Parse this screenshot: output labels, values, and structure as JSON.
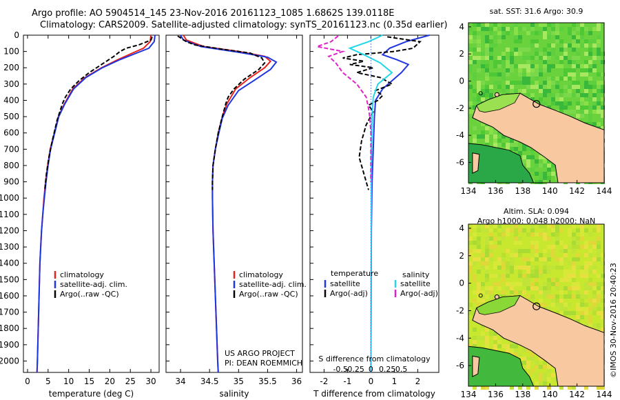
{
  "header": {
    "line1": "Argo profile: AO 5904514_145 23-Nov-2016 20161123_1085 1.6862S 139.0118E",
    "line2": "Climatology: CARS2009. Satellite-adjusted climatology: synTS_20161123.nc (0.35d earlier)"
  },
  "credits": {
    "project": "US ARGO PROJECT",
    "pi": "PI: DEAN ROEMMICH"
  },
  "footer": {
    "timestamp": "©IMOS 30-Nov-2016 20:40:23"
  },
  "colors": {
    "climatology": "#e8201c",
    "satellite": "#1f35e0",
    "argo": "#000000",
    "sal_satellite": "#22d8e8",
    "sal_argo": "#e020c8"
  },
  "chart_data": [
    {
      "type": "line",
      "id": "temperature",
      "xlabel": "temperature (deg C)",
      "ylabel": "",
      "xlim": [
        -1,
        32
      ],
      "ylim": [
        2070,
        0
      ],
      "y_axis": "depth (reversed)",
      "xticks": [
        0,
        5,
        10,
        15,
        20,
        25,
        30
      ],
      "yticks": [
        0,
        100,
        200,
        300,
        400,
        500,
        600,
        700,
        800,
        900,
        1000,
        1100,
        1200,
        1300,
        1400,
        1500,
        1600,
        1700,
        1800,
        1900,
        2000
      ],
      "legend": [
        "climatology",
        "satellite-adj. clim.",
        "Argo(..raw -QC)"
      ],
      "series": [
        {
          "name": "climatology",
          "style": "solid",
          "color_key": "climatology",
          "points": [
            [
              30,
              0
            ],
            [
              29.8,
              40
            ],
            [
              28.2,
              80
            ],
            [
              25.5,
              110
            ],
            [
              22,
              150
            ],
            [
              18,
              200
            ],
            [
              14,
              260
            ],
            [
              11,
              330
            ],
            [
              9,
              420
            ],
            [
              7.5,
              500
            ],
            [
              6.5,
              600
            ],
            [
              5.5,
              700
            ],
            [
              4.9,
              800
            ],
            [
              4.4,
              900
            ],
            [
              4,
              1000
            ],
            [
              3.7,
              1100
            ],
            [
              3.4,
              1200
            ],
            [
              3.2,
              1300
            ],
            [
              3,
              1400
            ],
            [
              2.9,
              1500
            ],
            [
              2.8,
              1600
            ],
            [
              2.7,
              1700
            ],
            [
              2.6,
              1800
            ],
            [
              2.5,
              1900
            ],
            [
              2.4,
              2000
            ],
            [
              2.3,
              2070
            ]
          ]
        },
        {
          "name": "satellite-adj. clim.",
          "style": "solid",
          "color_key": "satellite",
          "points": [
            [
              31,
              0
            ],
            [
              30.8,
              40
            ],
            [
              29.5,
              80
            ],
            [
              26.5,
              110
            ],
            [
              22.5,
              150
            ],
            [
              18.2,
              200
            ],
            [
              14.2,
              260
            ],
            [
              11.2,
              330
            ],
            [
              9.1,
              420
            ],
            [
              7.6,
              500
            ],
            [
              6.6,
              600
            ],
            [
              5.6,
              700
            ],
            [
              5,
              800
            ],
            [
              4.5,
              900
            ],
            [
              4.1,
              1000
            ],
            [
              3.7,
              1100
            ],
            [
              3.4,
              1200
            ],
            [
              3.2,
              1300
            ],
            [
              3,
              1400
            ],
            [
              2.9,
              1500
            ],
            [
              2.8,
              1600
            ],
            [
              2.7,
              1700
            ],
            [
              2.6,
              1800
            ],
            [
              2.5,
              1900
            ],
            [
              2.4,
              2000
            ],
            [
              2.3,
              2070
            ]
          ]
        },
        {
          "name": "Argo(..raw -QC)",
          "style": "dashed",
          "color_key": "argo",
          "points": [
            [
              30.3,
              10
            ],
            [
              30,
              30
            ],
            [
              27,
              60
            ],
            [
              24,
              80
            ],
            [
              22.5,
              100
            ],
            [
              21,
              130
            ],
            [
              18,
              180
            ],
            [
              15,
              230
            ],
            [
              12.5,
              280
            ],
            [
              10.5,
              330
            ],
            [
              9.2,
              380
            ],
            [
              8.5,
              420
            ],
            [
              7.2,
              520
            ],
            [
              6,
              650
            ],
            [
              5.2,
              750
            ],
            [
              4.6,
              850
            ],
            [
              4.2,
              950
            ]
          ]
        }
      ]
    },
    {
      "type": "line",
      "id": "salinity",
      "xlabel": "salinity",
      "ylabel": "",
      "xlim": [
        33.75,
        36.1
      ],
      "ylim": [
        2070,
        0
      ],
      "y_axis": "depth (reversed)",
      "xticks": [
        34,
        34.5,
        35,
        35.5,
        36
      ],
      "legend": [
        "climatology",
        "satellite-adj. clim.",
        "Argo(..raw -QC)"
      ],
      "series": [
        {
          "name": "climatology",
          "style": "solid",
          "color_key": "climatology",
          "points": [
            [
              34.05,
              0
            ],
            [
              34.1,
              30
            ],
            [
              34.4,
              70
            ],
            [
              35.0,
              100
            ],
            [
              35.45,
              130
            ],
            [
              35.55,
              160
            ],
            [
              35.45,
              200
            ],
            [
              35.2,
              260
            ],
            [
              34.95,
              330
            ],
            [
              34.8,
              420
            ],
            [
              34.72,
              500
            ],
            [
              34.65,
              600
            ],
            [
              34.6,
              700
            ],
            [
              34.56,
              800
            ],
            [
              34.55,
              900
            ],
            [
              34.55,
              1000
            ],
            [
              34.56,
              1200
            ],
            [
              34.58,
              1400
            ],
            [
              34.6,
              1600
            ],
            [
              34.62,
              1800
            ],
            [
              34.64,
              2000
            ],
            [
              34.65,
              2070
            ]
          ]
        },
        {
          "name": "satellite-adj. clim.",
          "style": "solid",
          "color_key": "satellite",
          "points": [
            [
              34.0,
              0
            ],
            [
              34.05,
              30
            ],
            [
              34.35,
              70
            ],
            [
              35.0,
              105
            ],
            [
              35.5,
              135
            ],
            [
              35.65,
              165
            ],
            [
              35.55,
              210
            ],
            [
              35.3,
              270
            ],
            [
              35.0,
              340
            ],
            [
              34.82,
              430
            ],
            [
              34.72,
              510
            ],
            [
              34.66,
              600
            ],
            [
              34.6,
              700
            ],
            [
              34.56,
              800
            ],
            [
              34.55,
              900
            ],
            [
              34.55,
              1000
            ],
            [
              34.56,
              1200
            ],
            [
              34.58,
              1400
            ],
            [
              34.6,
              1600
            ],
            [
              34.62,
              1800
            ],
            [
              34.64,
              2000
            ],
            [
              34.65,
              2070
            ]
          ]
        },
        {
          "name": "Argo(..raw -QC)",
          "style": "dashed",
          "color_key": "argo",
          "points": [
            [
              33.95,
              5
            ],
            [
              34.1,
              40
            ],
            [
              34.25,
              60
            ],
            [
              34.7,
              85
            ],
            [
              35.2,
              110
            ],
            [
              35.4,
              140
            ],
            [
              35.45,
              170
            ],
            [
              35.35,
              210
            ],
            [
              35.1,
              270
            ],
            [
              34.92,
              330
            ],
            [
              34.82,
              380
            ],
            [
              34.78,
              420
            ],
            [
              34.72,
              500
            ],
            [
              34.65,
              600
            ],
            [
              34.6,
              700
            ],
            [
              34.56,
              800
            ],
            [
              34.55,
              900
            ],
            [
              34.55,
              950
            ]
          ]
        }
      ]
    },
    {
      "type": "line",
      "id": "difference",
      "xlabel": "T difference from climatology",
      "xlabel_top": "S difference from climatology",
      "xlim": [
        -2.6,
        2.9
      ],
      "ylim": [
        2070,
        0
      ],
      "y_axis": "depth (reversed)",
      "xticks": [
        -2,
        -1,
        0,
        1,
        2
      ],
      "xticks_salinity": [
        "-0.5",
        "-0.25",
        "0",
        "0.25",
        "0.5"
      ],
      "legend_headers": [
        "temperature",
        "salinity"
      ],
      "legend": [
        "satellite",
        "Argo(-adj)",
        "satellite",
        "Argo(-adj)"
      ],
      "series": [
        {
          "name": "T satellite",
          "style": "solid",
          "color_key": "satellite",
          "points": [
            [
              2.5,
              0
            ],
            [
              1.5,
              40
            ],
            [
              0.8,
              80
            ],
            [
              0.5,
              120
            ],
            [
              1.1,
              150
            ],
            [
              1.6,
              180
            ],
            [
              1.3,
              230
            ],
            [
              0.9,
              280
            ],
            [
              0.5,
              330
            ],
            [
              0.2,
              400
            ],
            [
              0.15,
              500
            ],
            [
              0.1,
              700
            ],
            [
              0.05,
              900
            ],
            [
              0.02,
              1200
            ],
            [
              0,
              2070
            ]
          ]
        },
        {
          "name": "T Argo(-adj)",
          "style": "dashed",
          "color_key": "argo",
          "points": [
            [
              0.7,
              10
            ],
            [
              2.1,
              40
            ],
            [
              1.8,
              80
            ],
            [
              1.0,
              100
            ],
            [
              -0.6,
              120
            ],
            [
              -1.2,
              140
            ],
            [
              -0.3,
              160
            ],
            [
              -0.9,
              180
            ],
            [
              0.1,
              200
            ],
            [
              -0.6,
              230
            ],
            [
              0.4,
              260
            ],
            [
              0.9,
              300
            ],
            [
              0.2,
              340
            ],
            [
              0.5,
              370
            ],
            [
              0.3,
              400
            ],
            [
              -0.1,
              430
            ],
            [
              0.1,
              470
            ],
            [
              -0.2,
              550
            ],
            [
              -0.4,
              650
            ],
            [
              -0.5,
              750
            ],
            [
              -0.3,
              850
            ],
            [
              -0.1,
              950
            ]
          ]
        },
        {
          "name": "S satellite",
          "style": "solid",
          "color_key": "sal_satellite",
          "points": [
            [
              0.5,
              0
            ],
            [
              -0.1,
              40
            ],
            [
              -0.9,
              80
            ],
            [
              -0.3,
              120
            ],
            [
              0.4,
              170
            ],
            [
              0.9,
              230
            ],
            [
              0.3,
              300
            ],
            [
              0.1,
              380
            ],
            [
              0.05,
              500
            ],
            [
              0.02,
              800
            ],
            [
              0,
              2070
            ]
          ]
        },
        {
          "name": "S Argo(-adj)",
          "style": "dashed",
          "color_key": "sal_argo",
          "points": [
            [
              -1.4,
              5
            ],
            [
              -1.7,
              40
            ],
            [
              -2.3,
              70
            ],
            [
              -1.2,
              100
            ],
            [
              -1.8,
              130
            ],
            [
              -1.5,
              170
            ],
            [
              -1.2,
              230
            ],
            [
              -0.6,
              300
            ],
            [
              -0.2,
              380
            ],
            [
              -0.1,
              450
            ],
            [
              -0.05,
              500
            ],
            [
              0,
              600
            ],
            [
              0,
              900
            ]
          ]
        }
      ]
    },
    {
      "type": "heatmap",
      "id": "sst_map",
      "title": "sat. SST: 31.6  Argo: 30.9",
      "xlim": [
        134,
        144
      ],
      "ylim": [
        -7.5,
        4.3
      ],
      "xticks": [
        134,
        136,
        138,
        140,
        142,
        144
      ],
      "yticks": [
        4,
        2,
        0,
        -2,
        -4,
        -6
      ],
      "marker": {
        "lon": 139.0118,
        "lat": -1.6862
      },
      "colors": {
        "ocean": "#6ad23c",
        "land": "#f8c8a0",
        "shallow": "#9ae050"
      }
    },
    {
      "type": "heatmap",
      "id": "sla_map",
      "title": "Altim. SLA: 0.094",
      "subtitle": "Argo h1000: 0.048  h2000: NaN",
      "xlim": [
        134,
        144
      ],
      "ylim": [
        -7.5,
        4.3
      ],
      "xticks": [
        134,
        136,
        138,
        140,
        142,
        144
      ],
      "yticks": [
        4,
        2,
        0,
        -2,
        -4,
        -6
      ],
      "marker": {
        "lon": 139.0118,
        "lat": -1.6862
      },
      "colors": {
        "ocean": "#c8e830",
        "land": "#f8c8a0",
        "shallow": "#8ad838"
      }
    }
  ]
}
